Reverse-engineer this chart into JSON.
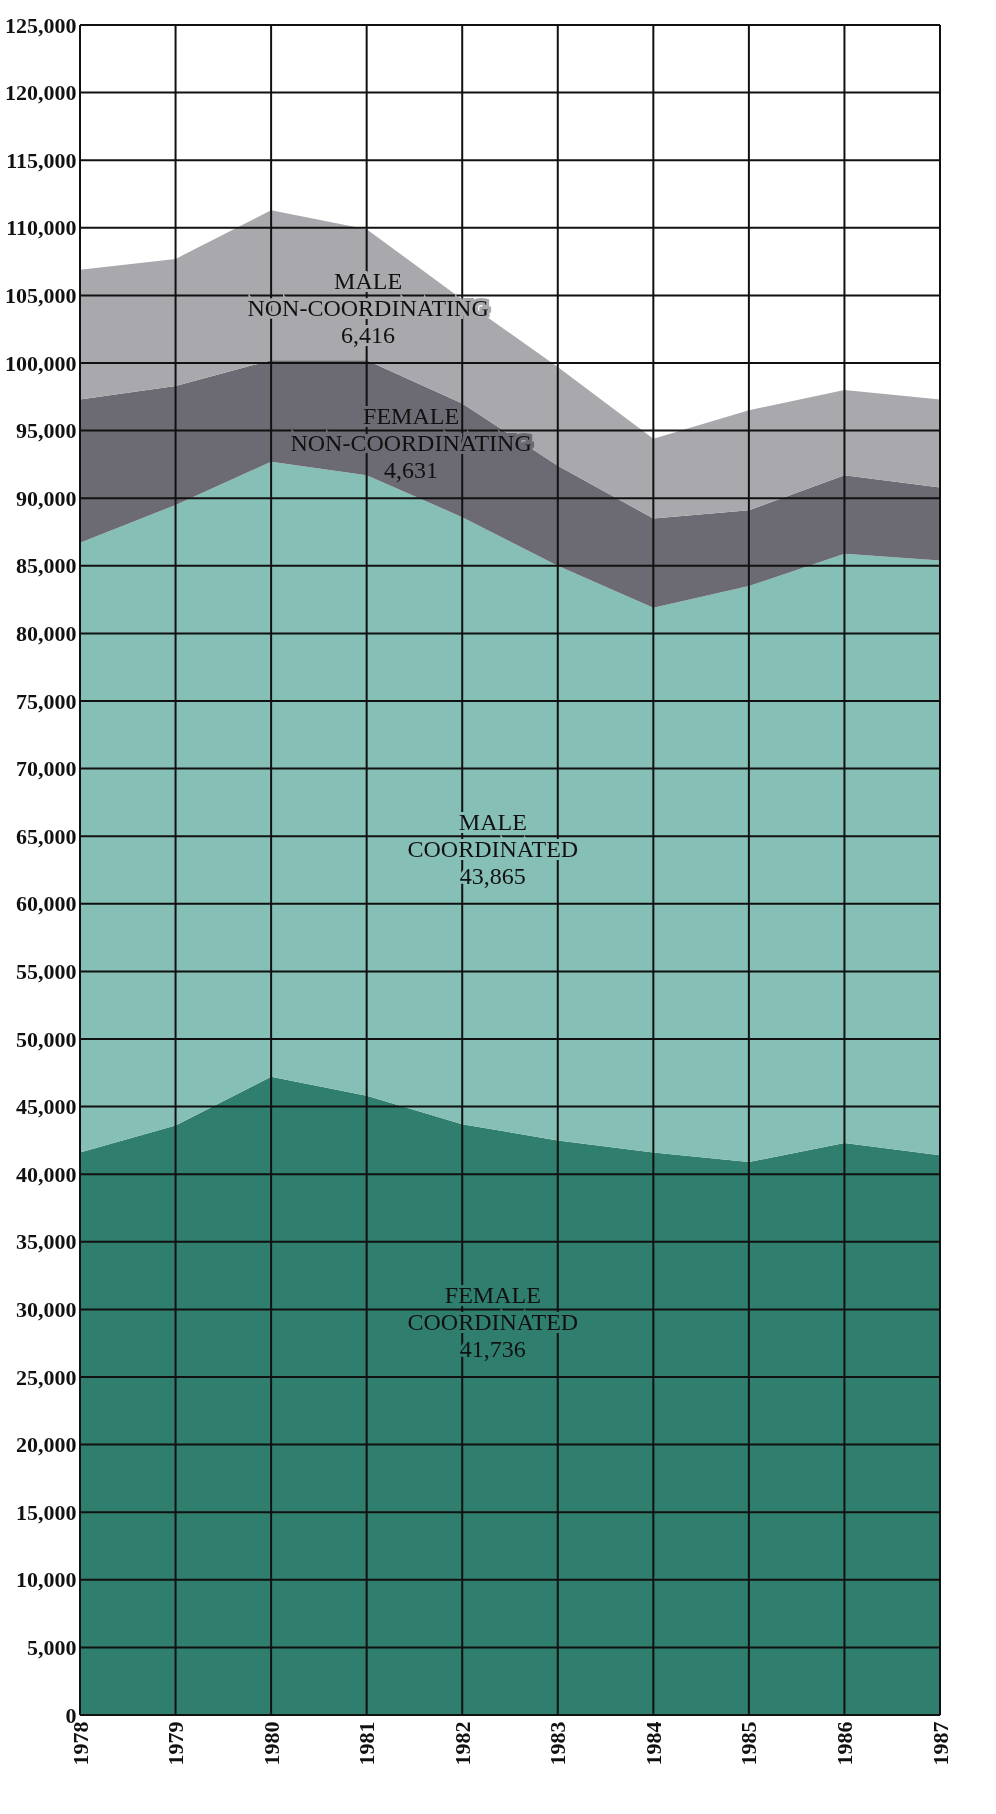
{
  "chart_data": {
    "type": "area",
    "stacked": true,
    "x": [
      1978,
      1979,
      1980,
      1981,
      1982,
      1983,
      1984,
      1985,
      1986,
      1987
    ],
    "series": [
      {
        "color": "#2f7e6e",
        "values": [
          41600,
          43600,
          47200,
          45800,
          43700,
          42500,
          41600,
          40900,
          42300,
          41400
        ]
      },
      {
        "color": "#86bfb6",
        "values": [
          45100,
          45900,
          45500,
          45900,
          44900,
          42500,
          40300,
          42600,
          43600,
          44000
        ]
      },
      {
        "color": "#6c6b73",
        "values": [
          10600,
          8800,
          7500,
          8500,
          8400,
          7400,
          6600,
          5600,
          5800,
          5400
        ]
      },
      {
        "color": "#a8a8ad",
        "values": [
          9600,
          9400,
          11100,
          9700,
          7700,
          7300,
          5900,
          7400,
          6300,
          6500
        ]
      }
    ],
    "xlim": [
      1978,
      1987
    ],
    "xticks": [
      1978,
      1979,
      1980,
      1981,
      1982,
      1983,
      1984,
      1985,
      1986,
      1987
    ],
    "ylim": [
      0,
      125000
    ],
    "yticks": [
      {
        "value": 0,
        "label": "0"
      },
      {
        "value": 5000,
        "label": "5,000"
      },
      {
        "value": 10000,
        "label": "10,000"
      },
      {
        "value": 15000,
        "label": "15,000"
      },
      {
        "value": 20000,
        "label": "20,000"
      },
      {
        "value": 25000,
        "label": "25,000"
      },
      {
        "value": 30000,
        "label": "30,000"
      },
      {
        "value": 35000,
        "label": "35,000"
      },
      {
        "value": 40000,
        "label": "40,000"
      },
      {
        "value": 45000,
        "label": "45,000"
      },
      {
        "value": 50000,
        "label": "50,000"
      },
      {
        "value": 55000,
        "label": "55,000"
      },
      {
        "value": 60000,
        "label": "60,000"
      },
      {
        "value": 65000,
        "label": "65,000"
      },
      {
        "value": 70000,
        "label": "70,000"
      },
      {
        "value": 75000,
        "label": "75,000"
      },
      {
        "value": 80000,
        "label": "80,000"
      },
      {
        "value": 85000,
        "label": "85,000"
      },
      {
        "value": 90000,
        "label": "90,000"
      },
      {
        "value": 95000,
        "label": "95,000"
      },
      {
        "value": 100000,
        "label": "100,000"
      },
      {
        "value": 105000,
        "label": "105,000"
      },
      {
        "value": 110000,
        "label": "110,000"
      },
      {
        "value": 115000,
        "label": "115,000"
      },
      {
        "value": 120000,
        "label": "120,000"
      },
      {
        "value": 125000,
        "label": "125,000"
      }
    ],
    "grid": true,
    "legend": false,
    "annotations": [
      "MALE\nNON-COORDINATING\n6,416",
      "FEMALE\nNON-COORDINATING\n4,631",
      "MALE\nCOORDINATED\n43,865",
      "FEMALE\nCOORDINATED\n41,736"
    ]
  }
}
